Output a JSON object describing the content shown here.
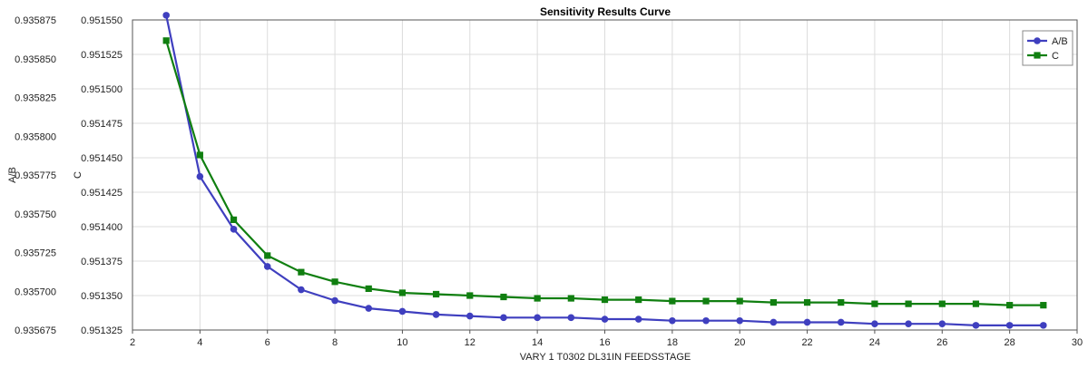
{
  "chart_data": {
    "type": "line",
    "title": "Sensitivity Results Curve",
    "xlabel": "VARY   1 T0302 DL31IN FEEDSSTAGE",
    "xlim": [
      2,
      30
    ],
    "xticks": [
      2,
      4,
      6,
      8,
      10,
      12,
      14,
      16,
      18,
      20,
      22,
      24,
      26,
      28,
      30
    ],
    "x": [
      3,
      4,
      5,
      6,
      7,
      8,
      9,
      10,
      11,
      12,
      13,
      14,
      15,
      16,
      17,
      18,
      19,
      20,
      21,
      22,
      23,
      24,
      25,
      26,
      27,
      28,
      29
    ],
    "y_axes": [
      {
        "label": "A/B",
        "lim": [
          0.935675,
          0.935875
        ],
        "ticks": [
          "0.935675",
          "0.935700",
          "0.935725",
          "0.935750",
          "0.935775",
          "0.935800",
          "0.935825",
          "0.935850",
          "0.935875"
        ]
      },
      {
        "label": "C",
        "lim": [
          0.951325,
          0.95155
        ],
        "ticks": [
          "0.951325",
          "0.951350",
          "0.951375",
          "0.951400",
          "0.951425",
          "0.951450",
          "0.951475",
          "0.951500",
          "0.951525",
          "0.951550"
        ]
      }
    ],
    "series": [
      {
        "name": "A/B",
        "axis": 0,
        "color": "#3f3fbf",
        "marker": "circle",
        "values": [
          0.935878,
          0.935774,
          0.93574,
          0.935716,
          0.935701,
          0.935694,
          0.935689,
          0.935687,
          0.935685,
          0.935684,
          0.935683,
          0.935683,
          0.935683,
          0.935682,
          0.935682,
          0.935681,
          0.935681,
          0.935681,
          0.93568,
          0.93568,
          0.93568,
          0.935679,
          0.935679,
          0.935679,
          0.935678,
          0.935678,
          0.935678
        ]
      },
      {
        "name": "C",
        "axis": 1,
        "color": "#107f10",
        "marker": "square",
        "values": [
          0.951535,
          0.951452,
          0.951405,
          0.951379,
          0.951367,
          0.95136,
          0.951355,
          0.951352,
          0.951351,
          0.95135,
          0.951349,
          0.951348,
          0.951348,
          0.951347,
          0.951347,
          0.951346,
          0.951346,
          0.951346,
          0.951345,
          0.951345,
          0.951345,
          0.951344,
          0.951344,
          0.951344,
          0.951344,
          0.951343,
          0.951343
        ]
      }
    ],
    "grid": true,
    "legend": "top-right"
  },
  "colors": {
    "grid": "#dcdcdc",
    "axis": "#555555"
  }
}
